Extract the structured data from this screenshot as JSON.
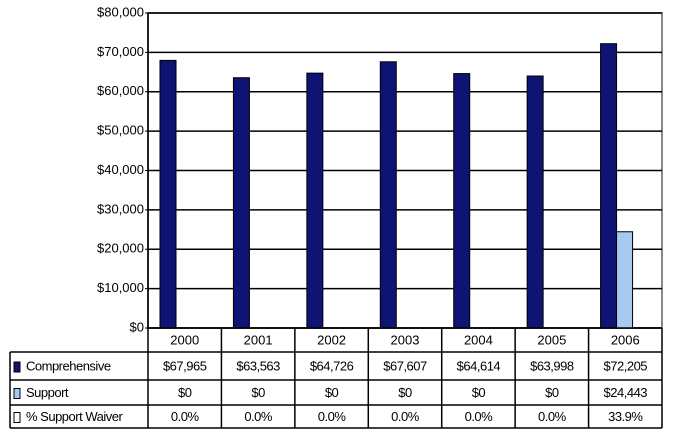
{
  "chart_data": {
    "type": "bar",
    "categories": [
      "2000",
      "2001",
      "2002",
      "2003",
      "2004",
      "2005",
      "2006"
    ],
    "series": [
      {
        "name": "Comprehensive",
        "color": "#0f1373",
        "values": [
          67965,
          63563,
          64726,
          67607,
          64614,
          63998,
          72205
        ],
        "value_labels": [
          "$67,965",
          "$63,563",
          "$64,726",
          "$67,607",
          "$64,614",
          "$63,998",
          "$72,205"
        ]
      },
      {
        "name": "Support",
        "color": "#a6caf0",
        "values": [
          0,
          0,
          0,
          0,
          0,
          0,
          24443
        ],
        "value_labels": [
          "$0",
          "$0",
          "$0",
          "$0",
          "$0",
          "$0",
          "$24,443"
        ]
      },
      {
        "name": "% Support Waiver",
        "color": "#ffffff",
        "values": [
          0.0,
          0.0,
          0.0,
          0.0,
          0.0,
          0.0,
          33.9
        ],
        "value_labels": [
          "0.0%",
          "0.0%",
          "0.0%",
          "0.0%",
          "0.0%",
          "0.0%",
          "33.9%"
        ]
      }
    ],
    "ylim": [
      0,
      80000
    ],
    "yticks": [
      {
        "value": 0,
        "label": "$0"
      },
      {
        "value": 10000,
        "label": "$10,000"
      },
      {
        "value": 20000,
        "label": "$20,000"
      },
      {
        "value": 30000,
        "label": "$30,000"
      },
      {
        "value": 40000,
        "label": "$40,000"
      },
      {
        "value": 50000,
        "label": "$50,000"
      },
      {
        "value": 60000,
        "label": "$60,000"
      },
      {
        "value": 70000,
        "label": "$70,000"
      },
      {
        "value": 80000,
        "label": "$80,000"
      }
    ],
    "grid": true
  }
}
